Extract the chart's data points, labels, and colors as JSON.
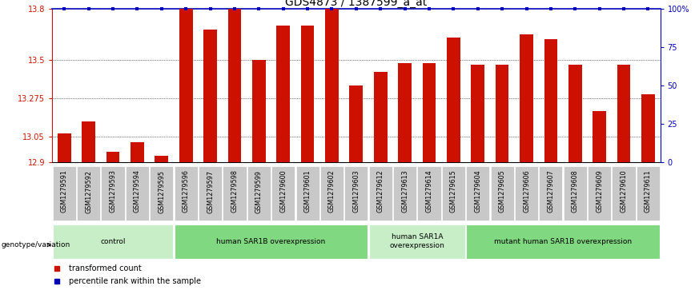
{
  "title": "GDS4873 / 1387599_a_at",
  "samples": [
    "GSM1279591",
    "GSM1279592",
    "GSM1279593",
    "GSM1279594",
    "GSM1279595",
    "GSM1279596",
    "GSM1279597",
    "GSM1279598",
    "GSM1279599",
    "GSM1279600",
    "GSM1279601",
    "GSM1279602",
    "GSM1279603",
    "GSM1279612",
    "GSM1279613",
    "GSM1279614",
    "GSM1279615",
    "GSM1279604",
    "GSM1279605",
    "GSM1279606",
    "GSM1279607",
    "GSM1279608",
    "GSM1279609",
    "GSM1279610",
    "GSM1279611"
  ],
  "values": [
    13.07,
    13.14,
    12.96,
    13.02,
    12.94,
    13.8,
    13.68,
    13.8,
    13.5,
    13.7,
    13.7,
    13.8,
    13.35,
    13.43,
    13.48,
    13.48,
    13.63,
    13.47,
    13.47,
    13.65,
    13.62,
    13.47,
    13.2,
    13.47,
    13.3
  ],
  "groups": [
    {
      "label": "control",
      "start": 0,
      "end": 4,
      "color": "#c8eec8"
    },
    {
      "label": "human SAR1B overexpression",
      "start": 5,
      "end": 12,
      "color": "#80d880"
    },
    {
      "label": "human SAR1A\noverexpression",
      "start": 13,
      "end": 16,
      "color": "#c8eec8"
    },
    {
      "label": "mutant human SAR1B overexpression",
      "start": 17,
      "end": 24,
      "color": "#80d880"
    }
  ],
  "ylim": [
    12.9,
    13.8
  ],
  "yticks": [
    12.9,
    13.05,
    13.275,
    13.5,
    13.8
  ],
  "ytick_labels": [
    "12.9",
    "13.05",
    "13.275",
    "13.5",
    "13.8"
  ],
  "right_yticks": [
    0,
    25,
    50,
    75,
    100
  ],
  "right_ytick_labels": [
    "0",
    "25",
    "50",
    "75",
    "100%"
  ],
  "bar_color": "#cc1100",
  "dot_color": "#0000bb",
  "title_fontsize": 10,
  "legend_text1": "transformed count",
  "legend_text2": "percentile rank within the sample",
  "genotype_label": "genotype/variation"
}
